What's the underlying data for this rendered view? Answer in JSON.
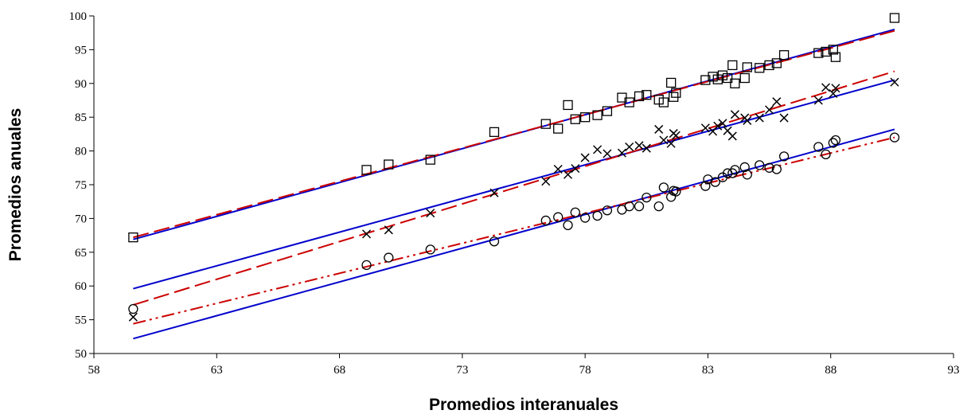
{
  "chart_data": {
    "type": "scatter",
    "xlabel": "Promedios interanuales",
    "ylabel": "Promedios anuales",
    "xlim": [
      58,
      93
    ],
    "ylim": [
      50,
      100
    ],
    "xticks": [
      "58",
      "63",
      "68",
      "73",
      "78",
      "83",
      "88",
      "93"
    ],
    "yticks": [
      "50",
      "55",
      "60",
      "65",
      "70",
      "75",
      "80",
      "85",
      "90",
      "95",
      "100"
    ],
    "legend": "none",
    "grid": false,
    "series": [
      {
        "marker": "square",
        "points": [
          [
            59.6,
            67.2
          ],
          [
            69.1,
            77.2
          ],
          [
            70.0,
            78.0
          ],
          [
            71.7,
            78.7
          ],
          [
            74.3,
            82.8
          ],
          [
            76.4,
            84.0
          ],
          [
            76.9,
            83.3
          ],
          [
            77.3,
            86.8
          ],
          [
            77.6,
            84.7
          ],
          [
            78.0,
            85.0
          ],
          [
            78.5,
            85.3
          ],
          [
            78.9,
            85.9
          ],
          [
            79.5,
            87.9
          ],
          [
            79.8,
            87.2
          ],
          [
            80.2,
            88.1
          ],
          [
            80.5,
            88.3
          ],
          [
            81.0,
            87.6
          ],
          [
            81.2,
            87.2
          ],
          [
            81.5,
            90.1
          ],
          [
            81.6,
            88.0
          ],
          [
            81.7,
            88.6
          ],
          [
            82.9,
            90.5
          ],
          [
            83.2,
            91.0
          ],
          [
            83.4,
            90.6
          ],
          [
            83.6,
            91.2
          ],
          [
            83.8,
            90.8
          ],
          [
            84.0,
            92.7
          ],
          [
            84.1,
            90.0
          ],
          [
            84.5,
            90.8
          ],
          [
            84.6,
            92.4
          ],
          [
            85.1,
            92.3
          ],
          [
            85.5,
            92.7
          ],
          [
            85.8,
            93.0
          ],
          [
            86.1,
            94.2
          ],
          [
            87.5,
            94.5
          ],
          [
            87.8,
            94.7
          ],
          [
            88.1,
            95.0
          ],
          [
            88.2,
            93.9
          ],
          [
            90.6,
            99.7
          ]
        ]
      },
      {
        "marker": "x",
        "points": [
          [
            59.6,
            55.4
          ],
          [
            69.1,
            67.7
          ],
          [
            70.0,
            68.3
          ],
          [
            71.7,
            70.8
          ],
          [
            74.3,
            73.8
          ],
          [
            76.4,
            75.5
          ],
          [
            76.9,
            77.3
          ],
          [
            77.3,
            76.5
          ],
          [
            77.6,
            77.4
          ],
          [
            78.0,
            79.0
          ],
          [
            78.5,
            80.2
          ],
          [
            78.9,
            79.6
          ],
          [
            79.5,
            79.7
          ],
          [
            79.8,
            80.6
          ],
          [
            80.2,
            80.8
          ],
          [
            80.5,
            80.4
          ],
          [
            81.0,
            83.2
          ],
          [
            81.2,
            81.6
          ],
          [
            81.5,
            81.1
          ],
          [
            81.6,
            82.6
          ],
          [
            81.7,
            82.3
          ],
          [
            82.9,
            83.4
          ],
          [
            83.2,
            82.9
          ],
          [
            83.4,
            83.7
          ],
          [
            83.6,
            84.1
          ],
          [
            83.8,
            83.0
          ],
          [
            84.0,
            82.2
          ],
          [
            84.1,
            85.4
          ],
          [
            84.5,
            84.9
          ],
          [
            84.6,
            84.5
          ],
          [
            85.1,
            84.9
          ],
          [
            85.5,
            86.1
          ],
          [
            85.8,
            87.3
          ],
          [
            86.1,
            84.9
          ],
          [
            87.5,
            87.5
          ],
          [
            87.8,
            89.4
          ],
          [
            88.1,
            88.5
          ],
          [
            88.2,
            89.3
          ],
          [
            90.6,
            90.2
          ]
        ]
      },
      {
        "marker": "circle",
        "points": [
          [
            59.6,
            56.6
          ],
          [
            69.1,
            63.1
          ],
          [
            70.0,
            64.2
          ],
          [
            71.7,
            65.4
          ],
          [
            74.3,
            66.6
          ],
          [
            76.4,
            69.7
          ],
          [
            76.9,
            70.2
          ],
          [
            77.3,
            69.0
          ],
          [
            77.6,
            70.9
          ],
          [
            78.0,
            70.1
          ],
          [
            78.5,
            70.4
          ],
          [
            78.9,
            71.2
          ],
          [
            79.5,
            71.3
          ],
          [
            79.8,
            71.8
          ],
          [
            80.2,
            71.8
          ],
          [
            80.5,
            73.1
          ],
          [
            81.0,
            71.8
          ],
          [
            81.2,
            74.6
          ],
          [
            81.5,
            73.2
          ],
          [
            81.6,
            74.1
          ],
          [
            81.7,
            74.0
          ],
          [
            82.9,
            74.8
          ],
          [
            83.0,
            75.8
          ],
          [
            83.3,
            75.4
          ],
          [
            83.6,
            76.1
          ],
          [
            83.8,
            76.7
          ],
          [
            84.0,
            76.7
          ],
          [
            84.1,
            77.2
          ],
          [
            84.5,
            77.6
          ],
          [
            84.6,
            76.5
          ],
          [
            85.1,
            77.9
          ],
          [
            85.5,
            77.5
          ],
          [
            85.8,
            77.3
          ],
          [
            86.1,
            79.2
          ],
          [
            87.5,
            80.6
          ],
          [
            87.8,
            79.5
          ],
          [
            88.1,
            81.2
          ],
          [
            88.2,
            81.6
          ],
          [
            90.6,
            82.0
          ]
        ]
      }
    ],
    "lines": [
      {
        "color": "#0000cc",
        "style": "solid",
        "points": [
          [
            59.6,
            66.9
          ],
          [
            90.6,
            98.0
          ]
        ]
      },
      {
        "color": "#cc0000",
        "style": "dash",
        "points": [
          [
            59.6,
            67.2
          ],
          [
            90.6,
            97.8
          ]
        ]
      },
      {
        "color": "#0000cc",
        "style": "solid",
        "points": [
          [
            59.6,
            59.6
          ],
          [
            90.6,
            90.5
          ]
        ]
      },
      {
        "color": "#cc0000",
        "style": "dash",
        "points": [
          [
            59.6,
            57.2
          ],
          [
            90.6,
            91.8
          ]
        ]
      },
      {
        "color": "#0000cc",
        "style": "solid",
        "points": [
          [
            59.6,
            52.2
          ],
          [
            90.6,
            83.2
          ]
        ]
      },
      {
        "color": "#cc0000",
        "style": "dashdot",
        "points": [
          [
            59.6,
            54.4
          ],
          [
            90.6,
            82.0
          ]
        ]
      }
    ]
  }
}
